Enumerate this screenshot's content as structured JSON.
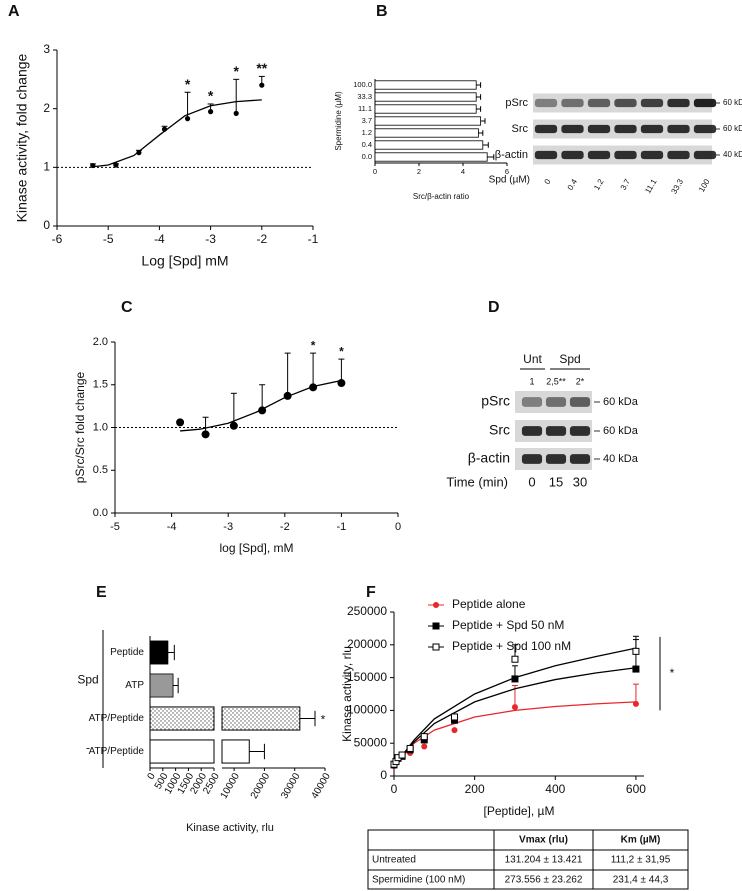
{
  "panels": [
    "A",
    "B",
    "C",
    "D",
    "E",
    "F"
  ],
  "chart_data": [
    {
      "type": "scatter",
      "xlabel": "Log [Spd] mM",
      "ylabel": "Kinase activity, fold change",
      "x": [
        -5.3,
        -4.85,
        -4.4,
        -3.9,
        -3.45,
        -3.0,
        -2.5,
        -2.0
      ],
      "series": [
        {
          "color": "#000000",
          "marker": "circle",
          "values": [
            1.03,
            1.04,
            1.25,
            1.65,
            1.83,
            1.95,
            1.92,
            2.4
          ],
          "errors": [
            0.03,
            0.02,
            0.04,
            0.05,
            0.45,
            0.13,
            0.58,
            0.15
          ],
          "significance": [
            null,
            null,
            null,
            null,
            "*",
            "*",
            "*",
            "**"
          ],
          "fit": {
            "x": [
              -5.3,
              -5.0,
              -4.5,
              -4.0,
              -3.5,
              -3.0,
              -2.5,
              -2.0
            ],
            "y": [
              1.01,
              1.04,
              1.2,
              1.55,
              1.88,
              2.05,
              2.12,
              2.15
            ]
          }
        }
      ],
      "xlim": [
        -6,
        -1
      ],
      "xticks": [
        -6,
        -5,
        -4,
        -3,
        -2,
        -1
      ],
      "ylim": [
        0,
        3
      ],
      "yticks": [
        0,
        1,
        2,
        3
      ],
      "reference_line": 1
    },
    {
      "type": "bar",
      "orientation": "horizontal",
      "xlabel": "Src/β-actin ratio",
      "ylabel": "Spermidine (µM)",
      "categories": [
        "100.0",
        "33.3",
        "11.1",
        "3.7",
        "1.2",
        "0.4",
        "0.0"
      ],
      "values": [
        4.6,
        4.6,
        4.6,
        4.8,
        4.7,
        4.9,
        5.1
      ],
      "errors": [
        0.2,
        0.2,
        0.2,
        0.2,
        0.2,
        0.25,
        0.3
      ],
      "fills": [
        "#ffffff",
        "#ffffff",
        "#ffffff",
        "#ffffff",
        "#ffffff",
        "#ffffff",
        "#ffffff"
      ],
      "xlim": [
        0,
        6
      ],
      "xticks": [
        0,
        2,
        4,
        6
      ]
    },
    {
      "type": "scatter",
      "xlabel": "log [Spd], mM",
      "ylabel": "pSrc/Src fold change",
      "x": [
        -3.85,
        -3.4,
        -2.9,
        -2.4,
        -1.95,
        -1.5,
        -1.0
      ],
      "series": [
        {
          "color": "#000000",
          "marker": "big-circle",
          "values": [
            1.06,
            0.92,
            1.02,
            1.2,
            1.37,
            1.47,
            1.52
          ],
          "errors": [
            null,
            0.2,
            0.38,
            0.3,
            0.5,
            0.4,
            0.28
          ],
          "significance": [
            null,
            null,
            null,
            null,
            null,
            "*",
            "*"
          ],
          "fit": {
            "x": [
              -3.85,
              -3.5,
              -3.0,
              -2.5,
              -2.0,
              -1.5,
              -1.0
            ],
            "y": [
              0.96,
              0.98,
              1.05,
              1.18,
              1.35,
              1.48,
              1.55
            ]
          }
        }
      ],
      "xlim": [
        -5,
        0
      ],
      "xticks": [
        -5,
        -4,
        -3,
        -2,
        -1,
        0
      ],
      "ylim": [
        0,
        2
      ],
      "yticks": [
        {
          "value": 0,
          "label": "0.0"
        },
        {
          "value": 0.5,
          "label": "0.5"
        },
        {
          "value": 1,
          "label": "1.0"
        },
        {
          "value": 1.5,
          "label": "1.5"
        },
        {
          "value": 2,
          "label": "2.0"
        }
      ],
      "reference_line": 1
    },
    {
      "type": "bar",
      "orientation": "horizontal",
      "xlabel": "Kinase activity, rlu",
      "categories": [
        "Peptide",
        "ATP",
        "ATP/Peptide",
        "ATP/Peptide"
      ],
      "groups": [
        {
          "label": "Spd",
          "count": 3
        },
        {
          "label": "-",
          "count": 1
        }
      ],
      "values": [
        700,
        900,
        31700,
        15000
      ],
      "errors": [
        250,
        200,
        5000,
        5000
      ],
      "significance": [
        null,
        null,
        "*",
        null
      ],
      "fills": [
        "#000000",
        "#999999",
        "dotted",
        "#ffffff"
      ],
      "xlim": [
        0,
        40000
      ],
      "axis_break": [
        2500,
        6000
      ],
      "xticks": [
        0,
        500,
        1000,
        1500,
        2000,
        2500,
        10000,
        20000,
        30000,
        40000
      ]
    },
    {
      "type": "scatter",
      "xlabel": "[Peptide], µM",
      "ylabel": "Kinase activity, rlu",
      "legend": "upper left",
      "x": [
        0,
        5,
        10,
        20,
        40,
        75,
        150,
        300,
        600
      ],
      "series": [
        {
          "name": "Peptide alone",
          "color": "#e8262a",
          "marker": "circle",
          "values": [
            15000,
            20000,
            25000,
            30000,
            35000,
            45000,
            70000,
            105000,
            110000
          ],
          "errors": [
            null,
            null,
            null,
            null,
            null,
            null,
            null,
            33000,
            30000
          ],
          "fit": {
            "x": [
              0,
              50,
              100,
              200,
              300,
              400,
              500,
              600
            ],
            "y": [
              15000,
              50000,
              70000,
              90000,
              100000,
              106000,
              110000,
              113000
            ]
          }
        },
        {
          "name": "Peptide + Spd 50 nM",
          "color": "#000000",
          "marker": "square",
          "values": [
            17000,
            22000,
            27000,
            30000,
            40000,
            55000,
            85000,
            148000,
            163000
          ],
          "errors": [
            null,
            null,
            null,
            null,
            null,
            null,
            null,
            20000,
            45000
          ],
          "fit": {
            "x": [
              0,
              50,
              100,
              200,
              300,
              400,
              500,
              600
            ],
            "y": [
              15000,
              52000,
              80000,
              113000,
              133000,
              147000,
              157000,
              165000
            ]
          }
        },
        {
          "name": "Peptide + Spd 100 nM",
          "color": "#000000",
          "marker": "open-square",
          "values": [
            18000,
            22000,
            28000,
            32000,
            42000,
            60000,
            90000,
            178000,
            190000
          ],
          "errors": [
            null,
            null,
            null,
            null,
            null,
            null,
            null,
            22000,
            23000
          ],
          "fit": {
            "x": [
              0,
              50,
              100,
              200,
              300,
              400,
              500,
              600
            ],
            "y": [
              15000,
              55000,
              87000,
              125000,
              150000,
              168000,
              182000,
              195000
            ]
          }
        }
      ],
      "significance": "*",
      "xlim": [
        0,
        620
      ],
      "xticks": [
        0,
        200,
        400,
        600
      ],
      "ylim": [
        0,
        250000
      ],
      "yticks": [
        0,
        50000,
        100000,
        150000,
        200000,
        250000
      ]
    }
  ],
  "blot_b": {
    "rows": [
      "pSrc",
      "Src",
      "β-actin"
    ],
    "sizes": [
      "60 kDa",
      "60 kDa",
      "40 kDa"
    ],
    "condition_label": "Spd (µM)",
    "lanes": [
      "0",
      "0.4",
      "1.2",
      "3.7",
      "11.1",
      "33.3",
      "100"
    ]
  },
  "blot_d": {
    "groups": [
      "Unt",
      "Spd"
    ],
    "quantification": [
      "1",
      "2,5**",
      "2*"
    ],
    "rows": [
      "pSrc",
      "Src",
      "β-actin"
    ],
    "sizes": [
      "60 kDa",
      "60 kDa",
      "40 kDa"
    ],
    "condition_label": "Time (min)",
    "lanes": [
      "0",
      "15",
      "30"
    ]
  },
  "table": {
    "columns": [
      "Vmax (rlu)",
      "Km (µM)"
    ],
    "rows": [
      [
        "Untreated",
        "131.204 ± 13.421",
        "111,2 ± 31,95"
      ],
      [
        "Spermidine (100 nM)",
        "273.556 ± 23.262",
        "231,4 ± 44,3"
      ]
    ]
  }
}
